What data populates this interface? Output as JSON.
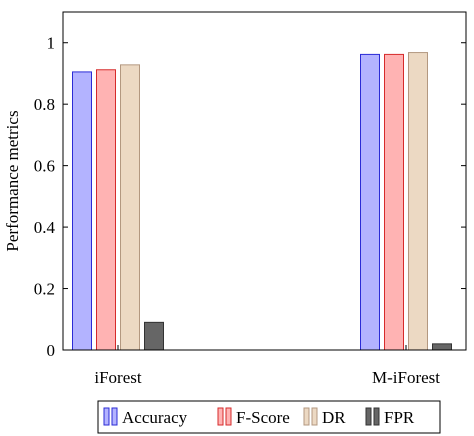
{
  "chart_data": {
    "type": "bar",
    "categories": [
      "iForest",
      "M-iForest"
    ],
    "series": [
      {
        "name": "Accuracy",
        "values": [
          0.905,
          0.962
        ],
        "fill": "#b3b3ff",
        "stroke": "#2b2bd6"
      },
      {
        "name": "F-Score",
        "values": [
          0.912,
          0.962
        ],
        "fill": "#ffb3b3",
        "stroke": "#d62b2b"
      },
      {
        "name": "DR",
        "values": [
          0.928,
          0.968
        ],
        "fill": "#ecd9c3",
        "stroke": "#b39880"
      },
      {
        "name": "FPR",
        "values": [
          0.09,
          0.02
        ],
        "fill": "#666666",
        "stroke": "#333333"
      }
    ],
    "title": "",
    "xlabel": "",
    "ylabel": "Performance metrics",
    "ylim": [
      0,
      1.1
    ],
    "yticks": [
      0,
      0.2,
      0.4,
      0.6,
      0.8,
      1
    ],
    "ytick_labels": [
      "0",
      "0.2",
      "0.4",
      "0.6",
      "0.8",
      "1"
    ],
    "grid": false,
    "legend_position": "bottom"
  }
}
